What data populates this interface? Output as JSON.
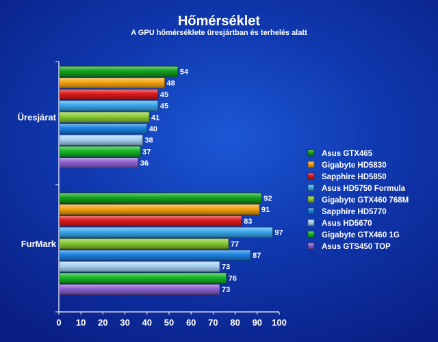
{
  "chart_data": {
    "type": "bar",
    "orientation": "horizontal",
    "title": "Hőmérséklet",
    "subtitle": "A GPU hőmérséklete üresjártban és terhelés alatt",
    "categories": [
      "Üresjárat",
      "FurMark"
    ],
    "xlim": [
      0,
      100
    ],
    "xticks": [
      0,
      10,
      20,
      30,
      40,
      50,
      60,
      70,
      80,
      90,
      100
    ],
    "grid": false,
    "legend_position": "right",
    "series": [
      {
        "name": "Asus GTX465",
        "values": [
          54,
          92
        ],
        "color": "#12a21a"
      },
      {
        "name": "Gigabyte HD5830",
        "values": [
          48,
          91
        ],
        "color": "#f3a20f"
      },
      {
        "name": "Sapphire HD5850",
        "values": [
          45,
          83
        ],
        "color": "#dc1a1a"
      },
      {
        "name": "Asus HD5750 Formula",
        "values": [
          45,
          97
        ],
        "color": "#3aa7ec"
      },
      {
        "name": "Gigabyte GTX460 768M",
        "values": [
          41,
          77
        ],
        "color": "#88c832"
      },
      {
        "name": "Sapphire HD5770",
        "values": [
          40,
          87
        ],
        "color": "#1a82e2"
      },
      {
        "name": "Asus HD5670",
        "values": [
          38,
          73
        ],
        "color": "#a6d2f4"
      },
      {
        "name": "Gigabyte GTX460 1G",
        "values": [
          37,
          76
        ],
        "color": "#16b826"
      },
      {
        "name": "Asus GTS450 TOP",
        "values": [
          36,
          73
        ],
        "color": "#8a5ed0"
      }
    ]
  }
}
